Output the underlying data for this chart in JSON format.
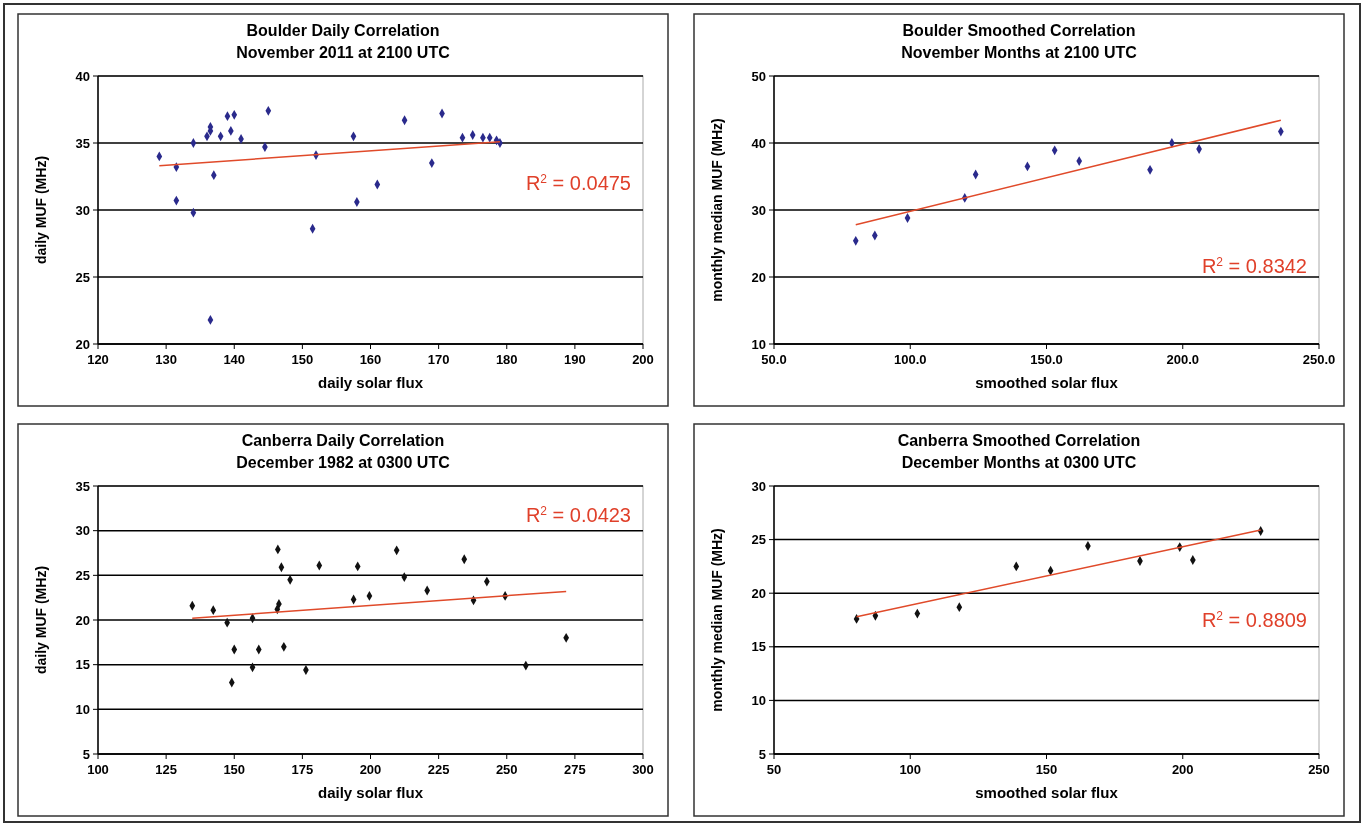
{
  "chart_data": [
    {
      "type": "scatter",
      "title": "Boulder Daily Correlation",
      "subtitle": "November 2011 at 2100 UTC",
      "xlabel": "daily solar flux",
      "ylabel": "daily MUF (MHz)",
      "xlim": [
        120,
        200
      ],
      "xticks": [
        120,
        130,
        140,
        150,
        160,
        170,
        180,
        190,
        200
      ],
      "ylim": [
        20,
        40
      ],
      "yticks": [
        20,
        25,
        30,
        35,
        40
      ],
      "grid": "y",
      "marker": "diamond",
      "annotations": [
        "R$^{2}$ = 0.0475"
      ],
      "series": [
        {
          "color": "#2a2a8c",
          "x": [
            129,
            131.5,
            131.5,
            134,
            134,
            136,
            136.5,
            136.5,
            137,
            136.5,
            138,
            139,
            139.5,
            140,
            141,
            144.5,
            145,
            151.5,
            152,
            157.5,
            158,
            161,
            165,
            169,
            170.5,
            173.5,
            175,
            176.5,
            177.5,
            178.5,
            179
          ],
          "values": [
            34.0,
            30.7,
            33.2,
            35.0,
            29.8,
            35.5,
            35.9,
            36.2,
            32.6,
            21.8,
            35.5,
            37.0,
            35.9,
            37.1,
            35.3,
            34.7,
            37.4,
            28.6,
            34.1,
            35.5,
            30.6,
            31.9,
            36.7,
            33.5,
            37.2,
            35.4,
            35.6,
            35.4,
            35.4,
            35.2,
            35.0
          ]
        },
        {
          "type": "line",
          "color": "#e04a2a",
          "marker": "none",
          "x": [
            129,
            179
          ],
          "values": [
            33.3,
            35.1
          ]
        }
      ]
    },
    {
      "type": "scatter",
      "title": "Boulder Smoothed Correlation",
      "subtitle": "November Months at 2100 UTC",
      "xlabel": "smoothed solar flux",
      "ylabel": "monthly median MUF (MHz)",
      "xlim": [
        50,
        250
      ],
      "xticks": [
        {
          "value": 50,
          "label": "50.0"
        },
        {
          "value": 100,
          "label": "100.0"
        },
        {
          "value": 150,
          "label": "150.0"
        },
        {
          "value": 200,
          "label": "200.0"
        },
        {
          "value": 250,
          "label": "250.0"
        }
      ],
      "ylim": [
        10,
        50
      ],
      "yticks": [
        10,
        20,
        30,
        40,
        50
      ],
      "grid": "y",
      "marker": "diamond",
      "annotations": [
        "R$^{2}$ = 0.8342"
      ],
      "series": [
        {
          "color": "#2a2a8c",
          "x": [
            80,
            87,
            99,
            120,
            124,
            143,
            153,
            162,
            188,
            196,
            206,
            236
          ],
          "values": [
            25.4,
            26.2,
            28.8,
            31.8,
            35.3,
            36.5,
            38.9,
            37.3,
            36.0,
            40.0,
            39.1,
            41.7
          ]
        },
        {
          "type": "line",
          "color": "#e04a2a",
          "marker": "none",
          "x": [
            80,
            236
          ],
          "values": [
            27.8,
            43.4
          ]
        }
      ]
    },
    {
      "type": "scatter",
      "title": "Canberra Daily Correlation",
      "subtitle": "December 1982 at 0300 UTC",
      "xlabel": "daily solar flux",
      "ylabel": "daily MUF (MHz)",
      "xlim": [
        100,
        300
      ],
      "xticks": [
        100,
        125,
        150,
        175,
        200,
        225,
        250,
        275,
        300
      ],
      "ylim": [
        5,
        35
      ],
      "yticks": [
        5,
        10,
        15,
        20,
        25,
        30,
        35
      ],
      "grid": "y",
      "marker": "diamond",
      "annotations": [
        "R$^{2}$ = 0.0423"
      ],
      "series": [
        {
          "color": "#111111",
          "x": [
            134.6,
            142.3,
            147.4,
            150,
            149.1,
            156.7,
            156.7,
            159,
            166,
            166.4,
            165.8,
            167.3,
            168.2,
            170.5,
            176.3,
            181.2,
            193.8,
            195.3,
            199.6,
            209.6,
            212.4,
            220.8,
            234.4,
            237.8,
            242.7,
            249.4,
            257,
            271.8
          ],
          "values": [
            21.6,
            21.1,
            19.7,
            16.7,
            13.0,
            20.2,
            14.7,
            16.7,
            27.9,
            21.8,
            21.2,
            25.9,
            17.0,
            24.5,
            14.4,
            26.1,
            22.3,
            26.0,
            22.7,
            27.8,
            24.8,
            23.3,
            26.8,
            22.2,
            24.3,
            22.7,
            14.9,
            18.0
          ]
        },
        {
          "type": "line",
          "color": "#e04a2a",
          "marker": "none",
          "x": [
            134.6,
            271.8
          ],
          "values": [
            20.2,
            23.2
          ]
        }
      ]
    },
    {
      "type": "scatter",
      "title": "Canberra Smoothed Correlation",
      "subtitle": "December Months at 0300 UTC",
      "xlabel": "smoothed solar flux",
      "ylabel": "monthly median MUF (MHz)",
      "xlim": [
        50,
        250
      ],
      "xticks": [
        50,
        100,
        150,
        200,
        250
      ],
      "ylim": [
        5,
        30
      ],
      "yticks": [
        5,
        10,
        15,
        20,
        25,
        30
      ],
      "grid": "y",
      "marker": "diamond",
      "annotations": [
        "R$^{2}$ = 0.8809"
      ],
      "series": [
        {
          "color": "#111111",
          "x": [
            80.3,
            87.2,
            102.6,
            118.0,
            138.9,
            151.5,
            165.2,
            184.3,
            198.9,
            203.7,
            228.6
          ],
          "values": [
            17.6,
            17.9,
            18.1,
            18.7,
            22.5,
            22.1,
            24.4,
            23.0,
            24.3,
            23.1,
            25.8
          ]
        },
        {
          "type": "line",
          "color": "#e04a2a",
          "marker": "none",
          "x": [
            80.3,
            228.6
          ],
          "values": [
            17.8,
            25.9
          ]
        }
      ]
    }
  ]
}
